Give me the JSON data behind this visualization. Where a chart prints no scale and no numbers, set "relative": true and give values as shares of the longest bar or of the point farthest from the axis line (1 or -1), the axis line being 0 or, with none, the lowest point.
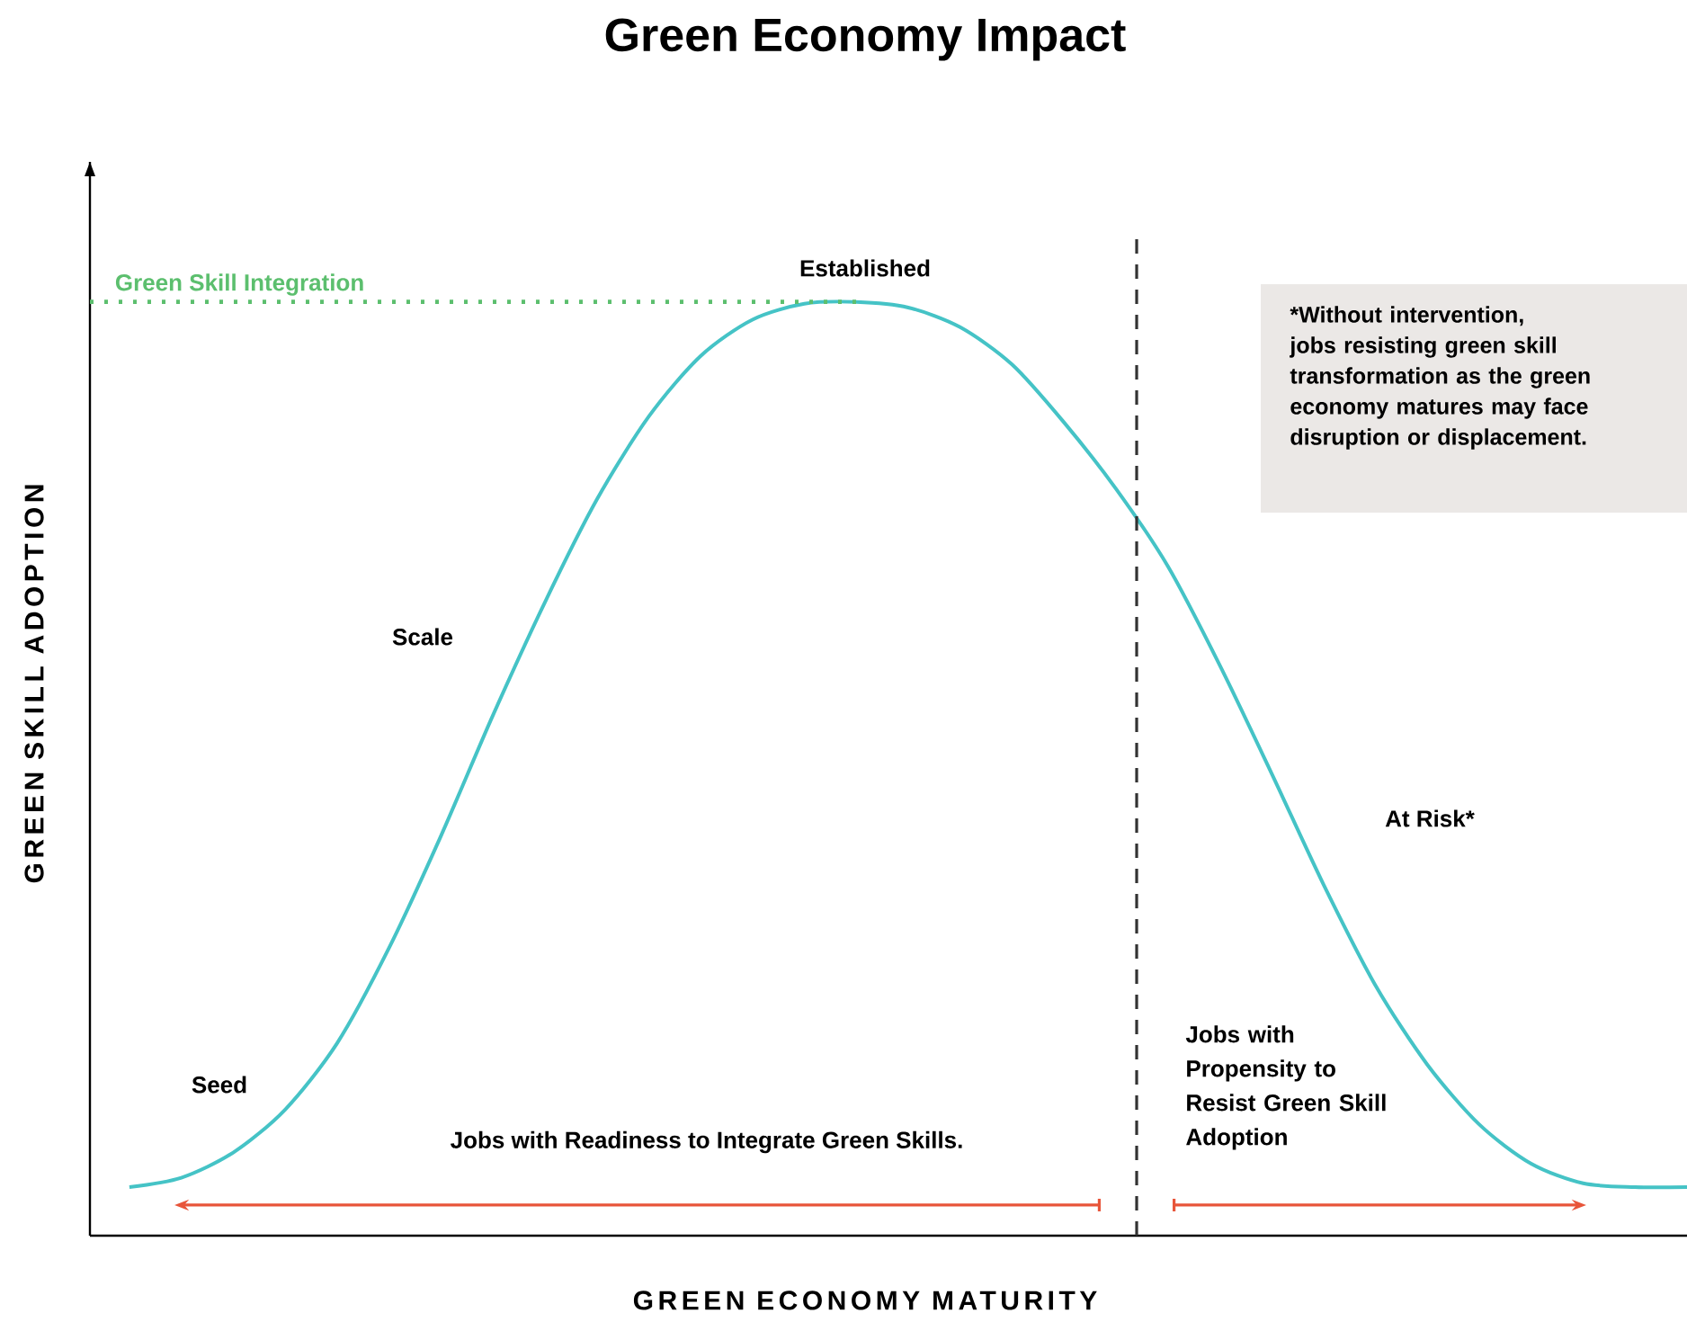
{
  "chart_data": {
    "type": "line",
    "title": "Green Economy Impact",
    "xlabel": "GREEN ECONOMY MATURITY",
    "ylabel": "GREEN SKILL ADOPTION",
    "relative": true,
    "categories": [
      null,
      null,
      null,
      null,
      null,
      null,
      null,
      null,
      null,
      null,
      null,
      null,
      null,
      null,
      null,
      null,
      null,
      null,
      null,
      null,
      null,
      null,
      null,
      null,
      null,
      null,
      null,
      null,
      null,
      null,
      null
    ],
    "series": [
      {
        "color": "#45c3c6",
        "values": [
          0.052,
          0.062,
          0.089,
          0.135,
          0.206,
          0.308,
          0.428,
          0.557,
          0.678,
          0.788,
          0.877,
          0.942,
          0.981,
          0.998,
          1,
          0.994,
          0.973,
          0.933,
          0.871,
          0.8,
          0.717,
          0.611,
          0.495,
          0.376,
          0.268,
          0.183,
          0.119,
          0.077,
          0.056,
          0.052,
          0.052
        ]
      }
    ],
    "ref_lines": [
      {
        "axis": "y",
        "value": 1,
        "label": "Green Skill Integration",
        "color": "#5cbf6e",
        "line_style": "dotted"
      }
    ],
    "annotations": [
      "Seed",
      "Scale",
      "Established",
      "At Risk*",
      "*Without intervention, jobs resisting green skill transformation as the green economy matures may face disruption or displacement.",
      "Jobs with Readiness to Integrate Green Skills.",
      "Jobs with Propensity to Resist Green Skill Adoption"
    ]
  }
}
